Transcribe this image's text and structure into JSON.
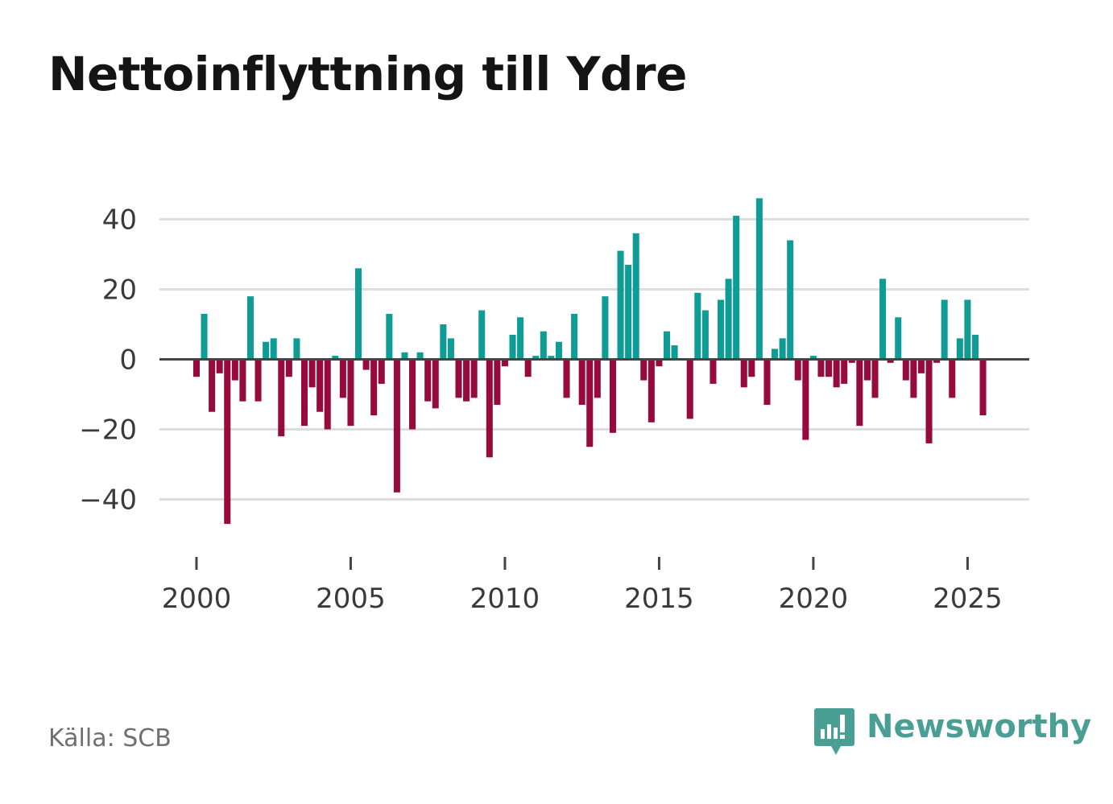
{
  "title": "Nettoinflyttning till Ydre",
  "source": "Källa: SCB",
  "brand": {
    "name": "Newsworthy",
    "icon": "newsworthy-logo-icon",
    "color": "#4a9f95"
  },
  "colors": {
    "positive": "#0f9c95",
    "negative": "#960a3c",
    "grid": "#dddddd",
    "zero_line": "#444444"
  },
  "chart_data": {
    "type": "bar",
    "title": "Nettoinflyttning till Ydre",
    "xlabel": "",
    "ylabel": "",
    "period": "quarterly",
    "x_start": 2000.0,
    "x_step": 0.25,
    "xlim": [
      1998.8,
      2027.0
    ],
    "ylim": [
      -50,
      47
    ],
    "yticks": [
      40,
      20,
      0,
      -20,
      -40
    ],
    "ytick_labels": [
      "40",
      "20",
      "0",
      "−20",
      "−40"
    ],
    "xticks": [
      2000,
      2005,
      2010,
      2015,
      2020,
      2025
    ],
    "xtick_labels": [
      "2000",
      "2005",
      "2010",
      "2015",
      "2020",
      "2025"
    ],
    "grid": true,
    "values": [
      -5,
      13,
      -15,
      -4,
      -47,
      -6,
      -12,
      18,
      -12,
      5,
      6,
      -22,
      -5,
      6,
      -19,
      -8,
      -15,
      -20,
      1,
      -11,
      -19,
      26,
      -3,
      -16,
      -7,
      13,
      -38,
      2,
      -20,
      2,
      -12,
      -14,
      10,
      6,
      -11,
      -12,
      -11,
      14,
      -28,
      -13,
      -2,
      7,
      12,
      -5,
      1,
      8,
      1,
      5,
      -11,
      13,
      -13,
      -25,
      -11,
      18,
      -21,
      31,
      27,
      36,
      -6,
      -18,
      -2,
      8,
      4,
      0,
      -17,
      19,
      14,
      -7,
      17,
      23,
      41,
      -8,
      -5,
      46,
      -13,
      3,
      6,
      34,
      -6,
      -23,
      1,
      -5,
      -5,
      -8,
      -7,
      -1,
      -19,
      -6,
      -11,
      23,
      -1,
      12,
      -6,
      -11,
      -4,
      -24,
      -1,
      17,
      -11,
      6,
      17,
      7,
      -16
    ]
  }
}
